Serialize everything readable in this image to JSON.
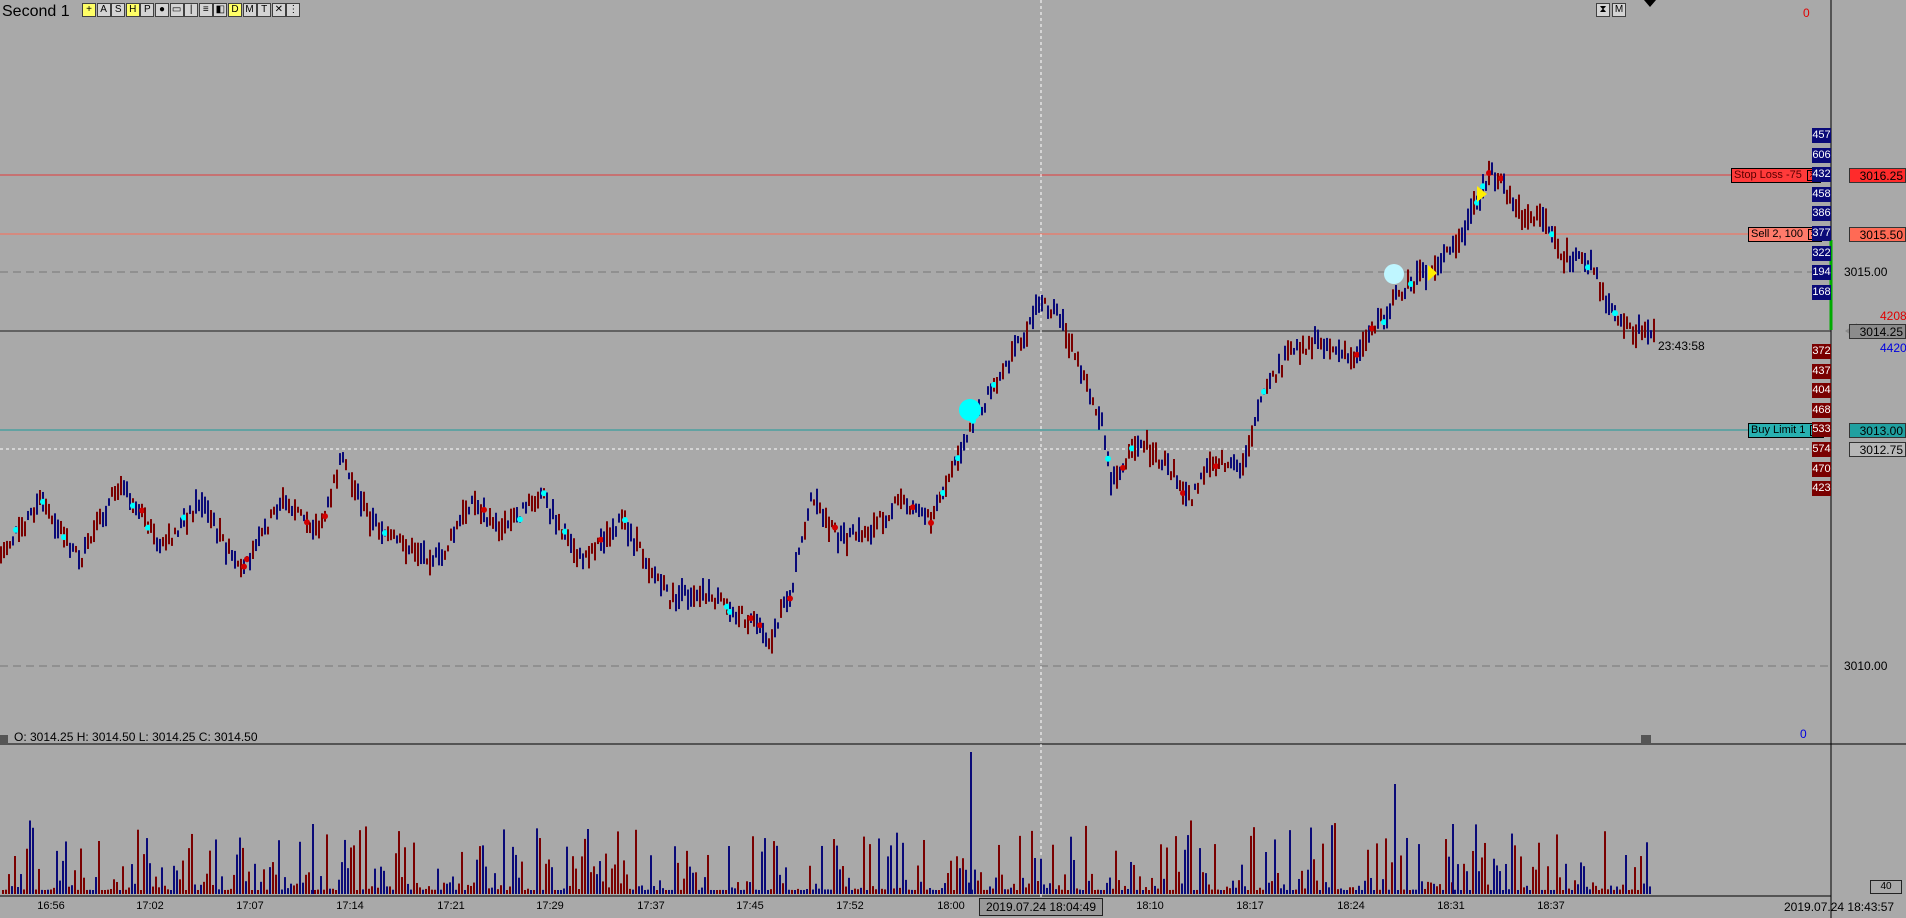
{
  "window": {
    "title": "Second  1"
  },
  "toolbar": {
    "buttons": [
      {
        "glyph": "+",
        "icon": "crosshair-icon",
        "highlight": true
      },
      {
        "glyph": "A",
        "icon": "text-tool-icon"
      },
      {
        "glyph": "S",
        "icon": "s-tool-icon"
      },
      {
        "glyph": "H",
        "icon": "h-tool-icon",
        "highlight": true
      },
      {
        "glyph": "P",
        "icon": "p-tool-icon"
      },
      {
        "glyph": "●",
        "icon": "dot-tool-icon"
      },
      {
        "glyph": "▭",
        "icon": "rectangle-tool-icon"
      },
      {
        "glyph": "|",
        "icon": "vertical-line-icon"
      },
      {
        "glyph": "≡",
        "icon": "horizontal-lines-icon"
      },
      {
        "glyph": "◧",
        "icon": "fill-tool-icon"
      },
      {
        "glyph": "D",
        "icon": "d-tool-icon",
        "highlight": true
      },
      {
        "glyph": "M",
        "icon": "m-tool-icon"
      },
      {
        "glyph": "T",
        "icon": "t-tool-icon"
      },
      {
        "glyph": "✕",
        "icon": "remove-tool-icon"
      },
      {
        "glyph": "⋮",
        "icon": "more-icon"
      }
    ],
    "right_buttons": [
      {
        "glyph": "⧗",
        "icon": "zoom-tool-icon"
      },
      {
        "glyph": "M",
        "icon": "m-right-icon"
      }
    ]
  },
  "price_pane": {
    "ohlc": "O: 3014.25  H: 3014.50  L: 3014.25  C: 3014.50",
    "zero_top": "0",
    "zero_bottom": "0",
    "axis_labels": [
      "3015.00",
      "3010.00"
    ],
    "countdown": "23:43:58"
  },
  "price_tags": [
    {
      "text": "3016.25",
      "bg": "#ff2b2b"
    },
    {
      "text": "3015.50",
      "bg": "#ff6a55"
    },
    {
      "text": "3014.25",
      "bg": "#8c8c8c"
    },
    {
      "text": "3013.00",
      "bg": "#20a0a0"
    },
    {
      "text": "3012.75",
      "bg": "#b8b8b8"
    }
  ],
  "side_numbers": {
    "red": "4208",
    "blue": "4420"
  },
  "orders": [
    {
      "label": "Stop Loss  -75",
      "bg": "#ff3a3a",
      "color": "#5a0000"
    },
    {
      "label": "Sell  2,  100",
      "bg": "#ff7b6b",
      "color": "#000000"
    },
    {
      "label": "Buy Limit  1",
      "bg": "#28b0b0",
      "color": "#000000"
    }
  ],
  "dom_ladder": {
    "blue": [
      "457",
      "606",
      "432",
      "458",
      "386",
      "377",
      "322",
      "194",
      "168"
    ],
    "red": [
      "372",
      "437",
      "404",
      "468",
      "533",
      "574",
      "470",
      "423"
    ]
  },
  "time_axis": {
    "labels": [
      "16:56",
      "17:02",
      "17:07",
      "17:14",
      "17:21",
      "17:29",
      "17:37",
      "17:45",
      "17:52",
      "18:00",
      "18:10",
      "18:17",
      "18:24",
      "18:31",
      "18:37"
    ],
    "crosshair_time": "2019.07.24  18:04:49",
    "clock": "2019.07.24  18:43:57"
  },
  "volume": {
    "count_label": "40"
  },
  "colors": {
    "background": "#a9a9a9",
    "up": "#0a0a78",
    "down": "#7a0000",
    "stop_line": "#e23a3a",
    "sell_line": "#ff6a55",
    "buy_line": "#1a9a9a",
    "cyan": "#00ffff"
  }
}
